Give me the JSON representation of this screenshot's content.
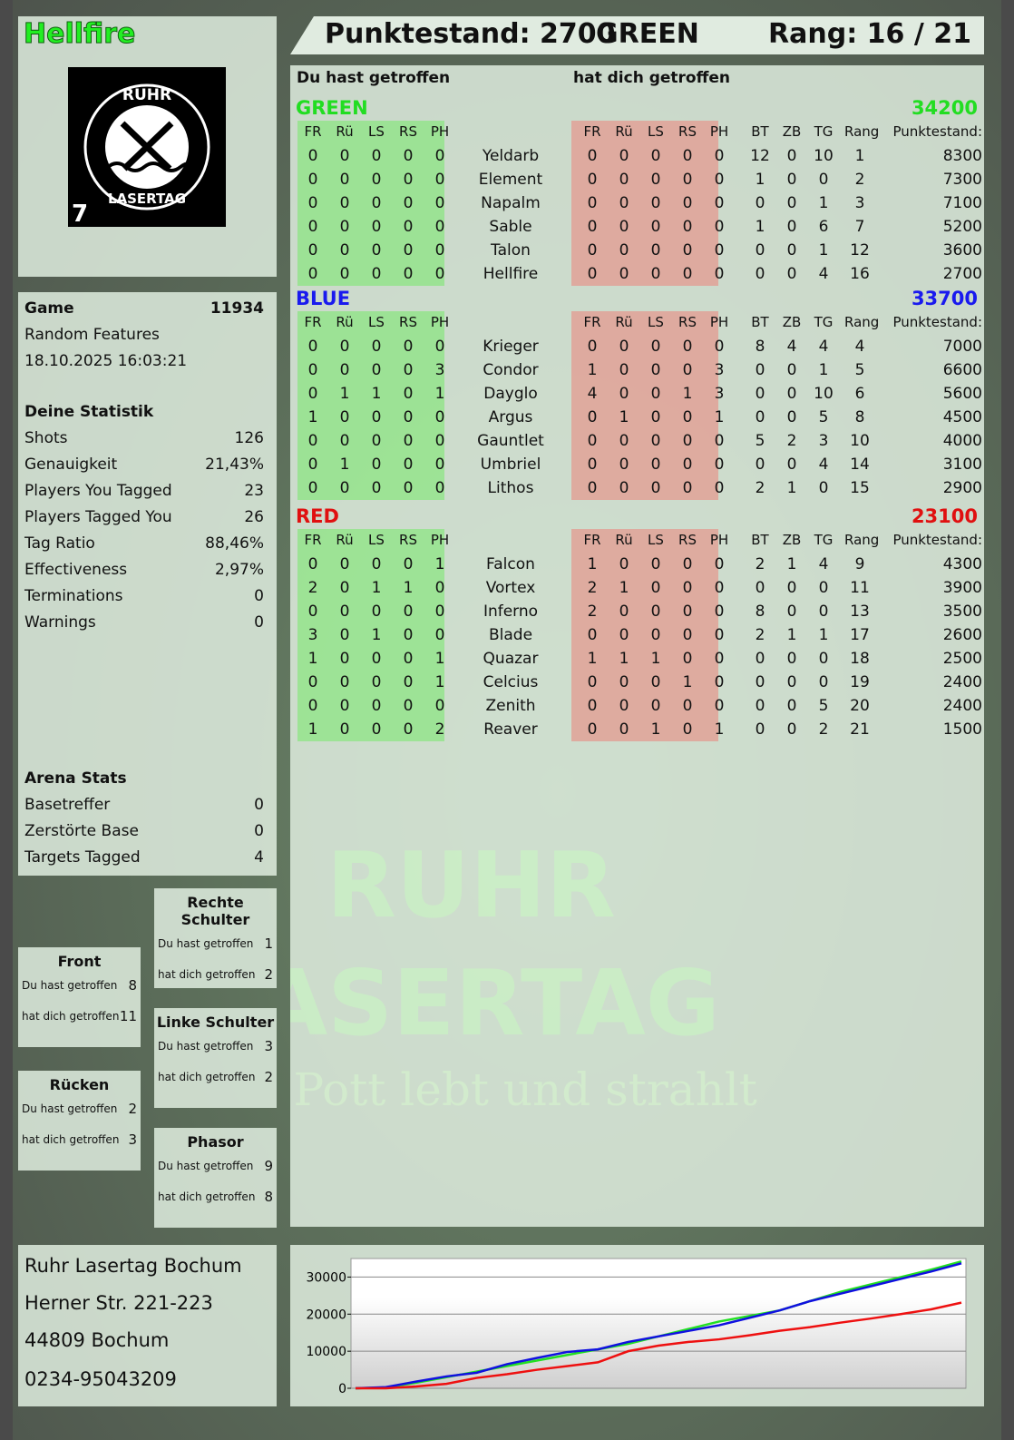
{
  "player": {
    "name": "Hellfire",
    "logo_text": [
      "RUHR",
      "LASERTAG"
    ],
    "logo_number": "7"
  },
  "header": {
    "score_label": "Punktestand: 2700",
    "team": "GREEN",
    "rank_label": "Rang: 16 / 21"
  },
  "table": {
    "you_hit_label": "Du hast getroffen",
    "hit_you_label": "hat dich getroffen",
    "columns": [
      "FR",
      "Rü",
      "LS",
      "RS",
      "PH",
      "",
      "FR",
      "Rü",
      "LS",
      "RS",
      "PH",
      "BT",
      "ZB",
      "TG",
      "Rang",
      "Punktestand:"
    ],
    "teams": [
      {
        "name": "GREEN",
        "score": "34200",
        "color": "#22dd22",
        "players": [
          [
            "0",
            "0",
            "0",
            "0",
            "0",
            "Yeldarb",
            "0",
            "0",
            "0",
            "0",
            "0",
            "12",
            "0",
            "10",
            "1",
            "8300"
          ],
          [
            "0",
            "0",
            "0",
            "0",
            "0",
            "Element",
            "0",
            "0",
            "0",
            "0",
            "0",
            "1",
            "0",
            "0",
            "2",
            "7300"
          ],
          [
            "0",
            "0",
            "0",
            "0",
            "0",
            "Napalm",
            "0",
            "0",
            "0",
            "0",
            "0",
            "0",
            "0",
            "1",
            "3",
            "7100"
          ],
          [
            "0",
            "0",
            "0",
            "0",
            "0",
            "Sable",
            "0",
            "0",
            "0",
            "0",
            "0",
            "1",
            "0",
            "6",
            "7",
            "5200"
          ],
          [
            "0",
            "0",
            "0",
            "0",
            "0",
            "Talon",
            "0",
            "0",
            "0",
            "0",
            "0",
            "0",
            "0",
            "1",
            "12",
            "3600"
          ],
          [
            "0",
            "0",
            "0",
            "0",
            "0",
            "Hellfire",
            "0",
            "0",
            "0",
            "0",
            "0",
            "0",
            "0",
            "4",
            "16",
            "2700"
          ]
        ]
      },
      {
        "name": "BLUE",
        "score": "33700",
        "color": "#1a1aee",
        "players": [
          [
            "0",
            "0",
            "0",
            "0",
            "0",
            "Krieger",
            "0",
            "0",
            "0",
            "0",
            "0",
            "8",
            "4",
            "4",
            "4",
            "7000"
          ],
          [
            "0",
            "0",
            "0",
            "0",
            "3",
            "Condor",
            "1",
            "0",
            "0",
            "0",
            "3",
            "0",
            "0",
            "1",
            "5",
            "6600"
          ],
          [
            "0",
            "1",
            "1",
            "0",
            "1",
            "Dayglo",
            "4",
            "0",
            "0",
            "1",
            "3",
            "0",
            "0",
            "10",
            "6",
            "5600"
          ],
          [
            "1",
            "0",
            "0",
            "0",
            "0",
            "Argus",
            "0",
            "1",
            "0",
            "0",
            "1",
            "0",
            "0",
            "5",
            "8",
            "4500"
          ],
          [
            "0",
            "0",
            "0",
            "0",
            "0",
            "Gauntlet",
            "0",
            "0",
            "0",
            "0",
            "0",
            "5",
            "2",
            "3",
            "10",
            "4000"
          ],
          [
            "0",
            "1",
            "0",
            "0",
            "0",
            "Umbriel",
            "0",
            "0",
            "0",
            "0",
            "0",
            "0",
            "0",
            "4",
            "14",
            "3100"
          ],
          [
            "0",
            "0",
            "0",
            "0",
            "0",
            "Lithos",
            "0",
            "0",
            "0",
            "0",
            "0",
            "2",
            "1",
            "0",
            "15",
            "2900"
          ]
        ]
      },
      {
        "name": "RED",
        "score": "23100",
        "color": "#e01010",
        "players": [
          [
            "0",
            "0",
            "0",
            "0",
            "1",
            "Falcon",
            "1",
            "0",
            "0",
            "0",
            "0",
            "2",
            "1",
            "4",
            "9",
            "4300"
          ],
          [
            "2",
            "0",
            "1",
            "1",
            "0",
            "Vortex",
            "2",
            "1",
            "0",
            "0",
            "0",
            "0",
            "0",
            "0",
            "11",
            "3900"
          ],
          [
            "0",
            "0",
            "0",
            "0",
            "0",
            "Inferno",
            "2",
            "0",
            "0",
            "0",
            "0",
            "8",
            "0",
            "0",
            "13",
            "3500"
          ],
          [
            "3",
            "0",
            "1",
            "0",
            "0",
            "Blade",
            "0",
            "0",
            "0",
            "0",
            "0",
            "2",
            "1",
            "1",
            "17",
            "2600"
          ],
          [
            "1",
            "0",
            "0",
            "0",
            "1",
            "Quazar",
            "1",
            "1",
            "1",
            "0",
            "0",
            "0",
            "0",
            "0",
            "18",
            "2500"
          ],
          [
            "0",
            "0",
            "0",
            "0",
            "1",
            "Celcius",
            "0",
            "0",
            "0",
            "1",
            "0",
            "0",
            "0",
            "0",
            "19",
            "2400"
          ],
          [
            "0",
            "0",
            "0",
            "0",
            "0",
            "Zenith",
            "0",
            "0",
            "0",
            "0",
            "0",
            "0",
            "0",
            "5",
            "20",
            "2400"
          ],
          [
            "1",
            "0",
            "0",
            "0",
            "2",
            "Reaver",
            "0",
            "0",
            "1",
            "0",
            "1",
            "0",
            "0",
            "2",
            "21",
            "1500"
          ]
        ]
      }
    ]
  },
  "game": {
    "label": "Game",
    "id": "11934",
    "mode": "Random Features",
    "datetime": "18.10.2025 16:03:21"
  },
  "stats": {
    "title": "Deine Statistik",
    "items": [
      [
        "Shots",
        "126"
      ],
      [
        "Genauigkeit",
        "21,43%"
      ],
      [
        "Players You Tagged",
        "23"
      ],
      [
        "Players Tagged You",
        "26"
      ],
      [
        "Tag Ratio",
        "88,46%"
      ],
      [
        "Effectiveness",
        "2,97%"
      ],
      [
        "Terminations",
        "0"
      ],
      [
        "Warnings",
        "0"
      ]
    ]
  },
  "arena": {
    "title": "Arena Stats",
    "items": [
      [
        "Basetreffer",
        "0"
      ],
      [
        "Zerstörte Base",
        "0"
      ],
      [
        "Targets Tagged",
        "4"
      ]
    ]
  },
  "hits": [
    {
      "title": "Rechte Schulter",
      "you_hit": "1",
      "hit_you": "2"
    },
    {
      "title": "Front",
      "you_hit": "8",
      "hit_you": "11"
    },
    {
      "title": "Linke Schulter",
      "you_hit": "3",
      "hit_you": "2"
    },
    {
      "title": "Rücken",
      "you_hit": "2",
      "hit_you": "3"
    },
    {
      "title": "Phasor",
      "you_hit": "9",
      "hit_you": "8"
    }
  ],
  "hit_labels": {
    "you_hit": "Du hast getroffen",
    "hit_you": "hat dich getroffen"
  },
  "address": [
    "Ruhr Lasertag Bochum",
    "Herner Str. 221-223",
    "44809 Bochum",
    "0234-95043209"
  ],
  "watermark": {
    "line1": "RUHR",
    "line2": "LASERTAG",
    "slogan": "Der Pott lebt und strahlt"
  },
  "chart_data": {
    "type": "line",
    "ylim": [
      0,
      35000
    ],
    "yticks": [
      "0",
      "10000",
      "20000",
      "30000"
    ],
    "grid": true,
    "series": [
      {
        "color": "#22e022",
        "values": [
          0,
          200,
          1500,
          3000,
          4500,
          6000,
          7500,
          9000,
          10500,
          12000,
          14000,
          16000,
          18000,
          19500,
          21000,
          23500,
          26000,
          28000,
          30000,
          32000,
          34200
        ]
      },
      {
        "color": "#1010e0",
        "values": [
          0,
          300,
          1800,
          3200,
          4200,
          6500,
          8200,
          9800,
          10500,
          12500,
          14000,
          15500,
          17000,
          19000,
          21000,
          23500,
          25500,
          27500,
          29500,
          31500,
          33700
        ]
      },
      {
        "color": "#ee1010",
        "values": [
          0,
          0,
          500,
          1200,
          2800,
          3800,
          5000,
          6000,
          7000,
          10000,
          11500,
          12500,
          13200,
          14300,
          15500,
          16500,
          17700,
          18800,
          20000,
          21300,
          23100
        ]
      }
    ]
  }
}
